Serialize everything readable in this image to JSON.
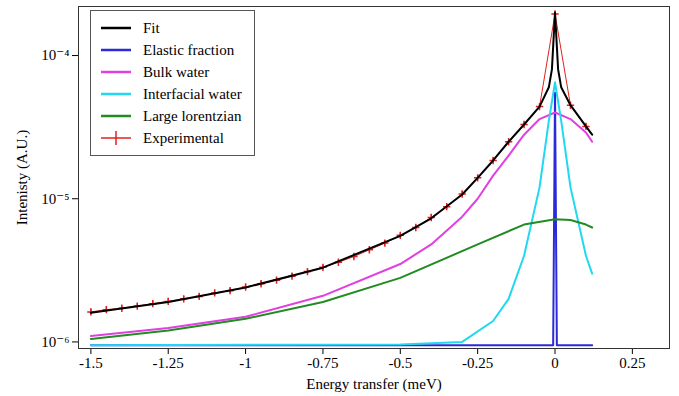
{
  "chart_data": {
    "type": "line",
    "xlabel": "Energy transfer (meV)",
    "ylabel": "Intenisty (A.U.)",
    "log": "y",
    "grid": false,
    "legend": "upper left",
    "xlim": [
      -1.54,
      0.37
    ],
    "xticks": [
      -1.5,
      -1.25,
      -1,
      -0.75,
      -0.5,
      -0.25,
      0,
      0.25
    ],
    "ylim": [
      9e-07,
      0.00022
    ],
    "yticks": [
      {
        "value": 1e-06,
        "label": "10⁻⁶"
      },
      {
        "value": 1e-05,
        "label": "10⁻⁵"
      },
      {
        "value": 0.0001,
        "label": "10⁻⁴"
      }
    ],
    "series": [
      {
        "name": "Fit",
        "color": "#000000",
        "x": [
          -1.5,
          -1.25,
          -1.0,
          -0.75,
          -0.5,
          -0.4,
          -0.3,
          -0.25,
          -0.2,
          -0.15,
          -0.1,
          -0.05,
          -0.02,
          -0.01,
          0,
          0.01,
          0.02,
          0.05,
          0.1,
          0.12
        ],
        "values": [
          1.6e-06,
          1.9e-06,
          2.4e-06,
          3.3e-06,
          5.5e-06,
          7.3e-06,
          1.07e-05,
          1.4e-05,
          1.85e-05,
          2.5e-05,
          3.3e-05,
          4.4e-05,
          6e-05,
          8e-05,
          0.0002,
          8e-05,
          6e-05,
          4.5e-05,
          3.2e-05,
          2.8e-05
        ]
      },
      {
        "name": "Elastic fraction",
        "color": "#2a2ad8",
        "x": [
          -1.5,
          -0.02,
          -0.006,
          0,
          0.006,
          0.02,
          0.12
        ],
        "values": [
          9.5e-07,
          9.5e-07,
          9.5e-07,
          5.5e-05,
          9.5e-07,
          9.5e-07,
          9.5e-07
        ]
      },
      {
        "name": "Bulk water",
        "color": "#e040e0",
        "x": [
          -1.5,
          -1.25,
          -1.0,
          -0.75,
          -0.5,
          -0.4,
          -0.3,
          -0.25,
          -0.2,
          -0.15,
          -0.1,
          -0.05,
          0,
          0.05,
          0.1,
          0.12
        ],
        "values": [
          1.1e-06,
          1.25e-06,
          1.5e-06,
          2.1e-06,
          3.5e-06,
          4.8e-06,
          7.5e-06,
          1e-05,
          1.45e-05,
          2e-05,
          2.8e-05,
          3.6e-05,
          4e-05,
          3.6e-05,
          2.9e-05,
          2.5e-05
        ]
      },
      {
        "name": "Interfacial water",
        "color": "#20d8f0",
        "x": [
          -1.5,
          -0.5,
          -0.3,
          -0.2,
          -0.15,
          -0.1,
          -0.05,
          -0.02,
          0,
          0.02,
          0.05,
          0.1,
          0.12
        ],
        "values": [
          9.5e-07,
          9.6e-07,
          1e-06,
          1.4e-06,
          2e-06,
          4e-06,
          1.2e-05,
          3.5e-05,
          6.5e-05,
          3.5e-05,
          1.2e-05,
          4e-06,
          3e-06
        ]
      },
      {
        "name": "Large lorentzian",
        "color": "#228b22",
        "x": [
          -1.5,
          -1.25,
          -1.0,
          -0.75,
          -0.5,
          -0.25,
          -0.1,
          0,
          0.05,
          0.1,
          0.12
        ],
        "values": [
          1.05e-06,
          1.2e-06,
          1.45e-06,
          1.9e-06,
          2.8e-06,
          4.8e-06,
          6.6e-06,
          7.2e-06,
          7.1e-06,
          6.6e-06,
          6.3e-06
        ]
      },
      {
        "name": "Experimental",
        "color": "#e02020",
        "type": "scatter",
        "marker": "plus",
        "x": [
          -1.5,
          -1.45,
          -1.4,
          -1.35,
          -1.3,
          -1.25,
          -1.2,
          -1.15,
          -1.1,
          -1.05,
          -1.0,
          -0.95,
          -0.9,
          -0.85,
          -0.8,
          -0.75,
          -0.7,
          -0.65,
          -0.6,
          -0.55,
          -0.5,
          -0.45,
          -0.4,
          -0.35,
          -0.3,
          -0.25,
          -0.2,
          -0.15,
          -0.1,
          -0.05,
          0,
          0.05,
          0.1
        ],
        "values": [
          1.62e-06,
          1.68e-06,
          1.72e-06,
          1.78e-06,
          1.85e-06,
          1.92e-06,
          2e-06,
          2.08e-06,
          2.2e-06,
          2.28e-06,
          2.42e-06,
          2.55e-06,
          2.7e-06,
          2.88e-06,
          3.1e-06,
          3.32e-06,
          3.6e-06,
          3.95e-06,
          4.4e-06,
          4.9e-06,
          5.55e-06,
          6.3e-06,
          7.4e-06,
          8.8e-06,
          1.08e-05,
          1.4e-05,
          1.85e-05,
          2.5e-05,
          3.3e-05,
          4.4e-05,
          0.000195,
          4.5e-05,
          3.2e-05
        ],
        "errors": [
          7e-08,
          7e-08,
          7e-08,
          7e-08,
          8e-08,
          8e-08,
          8e-08,
          8e-08,
          9e-08,
          9e-08,
          1e-07,
          1e-07,
          1.1e-07,
          1.2e-07,
          1.2e-07,
          1.3e-07,
          1.4e-07,
          1.6e-07,
          1.8e-07,
          2e-07,
          2.2e-07,
          2.5e-07,
          3e-07,
          3.5e-07,
          4.3e-07,
          5.6e-07,
          7.4e-07,
          1e-06,
          1.3e-06,
          1.8e-06,
          8e-06,
          1.8e-06,
          1.3e-06
        ]
      }
    ]
  }
}
